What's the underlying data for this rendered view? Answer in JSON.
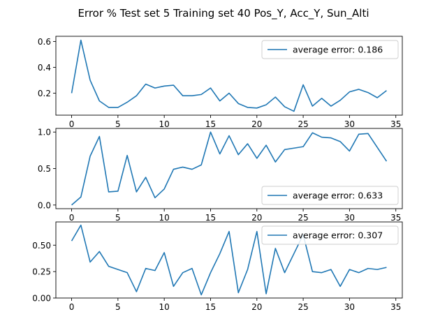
{
  "figure": {
    "title": "Error % Test set 5 Training set 40 Pos_Y, Acc_Y, Sun_Alti"
  },
  "chart_data": [
    {
      "type": "line",
      "x": [
        0,
        1,
        2,
        3,
        4,
        5,
        6,
        7,
        8,
        9,
        10,
        11,
        12,
        13,
        14,
        15,
        16,
        17,
        18,
        19,
        20,
        21,
        22,
        23,
        24,
        25,
        26,
        27,
        28,
        29,
        30,
        31,
        32,
        33,
        34
      ],
      "series": [
        {
          "name": "average error: 0.186",
          "color": "#1f77b4",
          "values": [
            0.2,
            0.61,
            0.3,
            0.14,
            0.09,
            0.09,
            0.13,
            0.18,
            0.27,
            0.24,
            0.255,
            0.262,
            0.18,
            0.18,
            0.19,
            0.24,
            0.14,
            0.2,
            0.12,
            0.09,
            0.085,
            0.11,
            0.17,
            0.095,
            0.06,
            0.265,
            0.1,
            0.16,
            0.1,
            0.145,
            0.21,
            0.23,
            0.205,
            0.165,
            0.22
          ]
        }
      ],
      "xlim": [
        -1.7,
        35.7
      ],
      "ylim": [
        0.03,
        0.64
      ],
      "xticks": [
        0,
        5,
        10,
        15,
        20,
        25,
        30,
        35
      ],
      "xtick_labels": [
        "0",
        "5",
        "10",
        "15",
        "20",
        "25",
        "30",
        "35"
      ],
      "yticks": [
        0.2,
        0.4,
        0.6
      ],
      "ytick_labels": [
        "0.2",
        "0.4",
        "0.6"
      ],
      "legend_position": "upper right"
    },
    {
      "type": "line",
      "x": [
        0,
        1,
        2,
        3,
        4,
        5,
        6,
        7,
        8,
        9,
        10,
        11,
        12,
        13,
        14,
        15,
        16,
        17,
        18,
        19,
        20,
        21,
        22,
        23,
        24,
        25,
        26,
        27,
        28,
        29,
        30,
        31,
        32,
        33,
        34
      ],
      "series": [
        {
          "name": "average error: 0.633",
          "color": "#1f77b4",
          "values": [
            0.0,
            0.11,
            0.67,
            0.94,
            0.18,
            0.19,
            0.68,
            0.18,
            0.38,
            0.1,
            0.22,
            0.49,
            0.52,
            0.49,
            0.55,
            1.0,
            0.7,
            0.95,
            0.69,
            0.84,
            0.64,
            0.82,
            0.59,
            0.76,
            0.78,
            0.8,
            0.99,
            0.93,
            0.92,
            0.87,
            0.74,
            0.97,
            0.98,
            0.79,
            0.6
          ]
        }
      ],
      "xlim": [
        -1.7,
        35.7
      ],
      "ylim": [
        -0.05,
        1.05
      ],
      "xticks": [
        0,
        5,
        10,
        15,
        20,
        25,
        30,
        35
      ],
      "xtick_labels": [
        "0",
        "5",
        "10",
        "15",
        "20",
        "25",
        "30",
        "35"
      ],
      "yticks": [
        0.0,
        0.5,
        1.0
      ],
      "ytick_labels": [
        "0.0",
        "0.5",
        "1.0"
      ],
      "legend_position": "lower right"
    },
    {
      "type": "line",
      "x": [
        0,
        1,
        2,
        3,
        4,
        5,
        6,
        7,
        8,
        9,
        10,
        11,
        12,
        13,
        14,
        15,
        16,
        17,
        18,
        19,
        20,
        21,
        22,
        23,
        24,
        25,
        26,
        27,
        28,
        29,
        30,
        31,
        32,
        33,
        34
      ],
      "series": [
        {
          "name": "average error: 0.307",
          "color": "#1f77b4",
          "values": [
            0.54,
            0.69,
            0.34,
            0.44,
            0.3,
            0.27,
            0.24,
            0.06,
            0.28,
            0.26,
            0.43,
            0.11,
            0.24,
            0.28,
            0.03,
            0.24,
            0.42,
            0.63,
            0.05,
            0.27,
            0.63,
            0.04,
            0.47,
            0.24,
            0.42,
            0.6,
            0.25,
            0.24,
            0.27,
            0.11,
            0.27,
            0.24,
            0.28,
            0.27,
            0.29
          ]
        }
      ],
      "xlim": [
        -1.7,
        35.7
      ],
      "ylim": [
        0.0,
        0.72
      ],
      "xticks": [
        0,
        5,
        10,
        15,
        20,
        25,
        30,
        35
      ],
      "xtick_labels": [
        "0",
        "5",
        "10",
        "15",
        "20",
        "25",
        "30",
        "35"
      ],
      "yticks": [
        0.0,
        0.25,
        0.5
      ],
      "ytick_labels": [
        "0.00",
        "0.25",
        "0.50"
      ],
      "legend_position": "upper right"
    }
  ]
}
